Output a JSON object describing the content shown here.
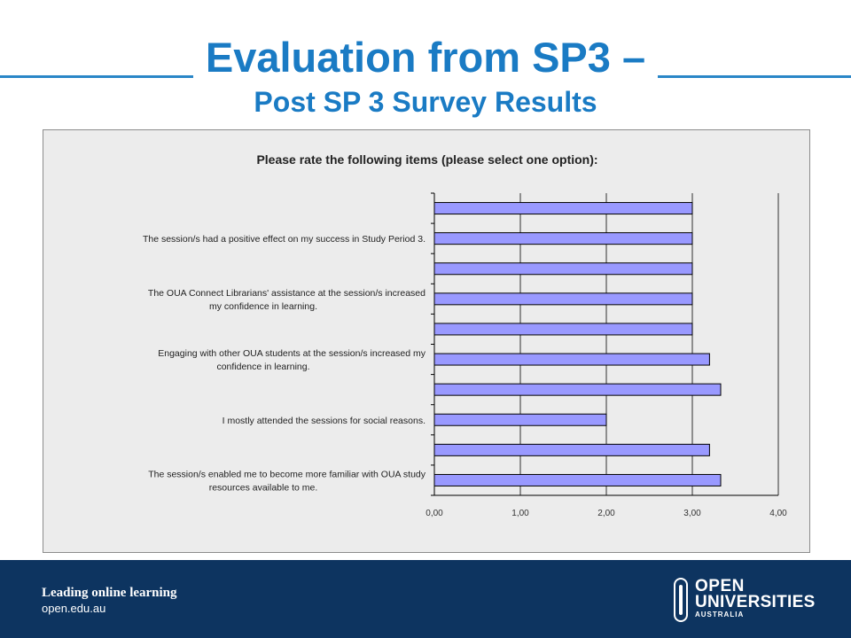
{
  "slide": {
    "title": "Evaluation from SP3 –",
    "subtitle": "Post SP 3 Survey Results"
  },
  "footer": {
    "tagline": "Leading online learning",
    "url": "open.edu.au",
    "logo_line1": "OPEN",
    "logo_line2": "UNIVERSITIES",
    "logo_line3": "AUSTRALIA"
  },
  "colors": {
    "title": "#1a7bc4",
    "bar_fill": "#9999ff",
    "footer_bg": "#0d3460",
    "chart_bg": "#ececec"
  },
  "chart_data": {
    "type": "bar",
    "orientation": "horizontal",
    "title": "Please rate the following items (please select one option):",
    "categories": [
      "The session/s enabled me to become more familiar with OUA study resources available to me.",
      "",
      "I mostly attended the sessions for social reasons.",
      "",
      "Engaging with other OUA students at the session/s increased my confidence in learning.",
      "",
      "The OUA Connect Librarians' assistance at the session/s increased my confidence in learning.",
      "",
      "The session/s had a positive effect on my success in Study Period 3.",
      ""
    ],
    "category_lines": [
      [
        "The session/s enabled me to become more familiar with OUA study",
        "resources available to me."
      ],
      [],
      [
        "I mostly attended the sessions for social reasons."
      ],
      [],
      [
        "Engaging with other OUA students at the session/s increased my",
        "confidence in learning."
      ],
      [],
      [
        "The OUA Connect Librarians' assistance at the session/s increased",
        "my confidence in learning."
      ],
      [],
      [
        "The session/s had a positive effect on my success in Study Period 3."
      ],
      []
    ],
    "values": [
      3.33,
      3.2,
      2.0,
      3.33,
      3.2,
      3.0,
      3.0,
      3.0,
      3.0,
      3.0
    ],
    "xlim": [
      0,
      4
    ],
    "xticks": [
      "0,00",
      "1,00",
      "2,00",
      "3,00",
      "4,00"
    ],
    "grid": true,
    "legend": "none"
  }
}
